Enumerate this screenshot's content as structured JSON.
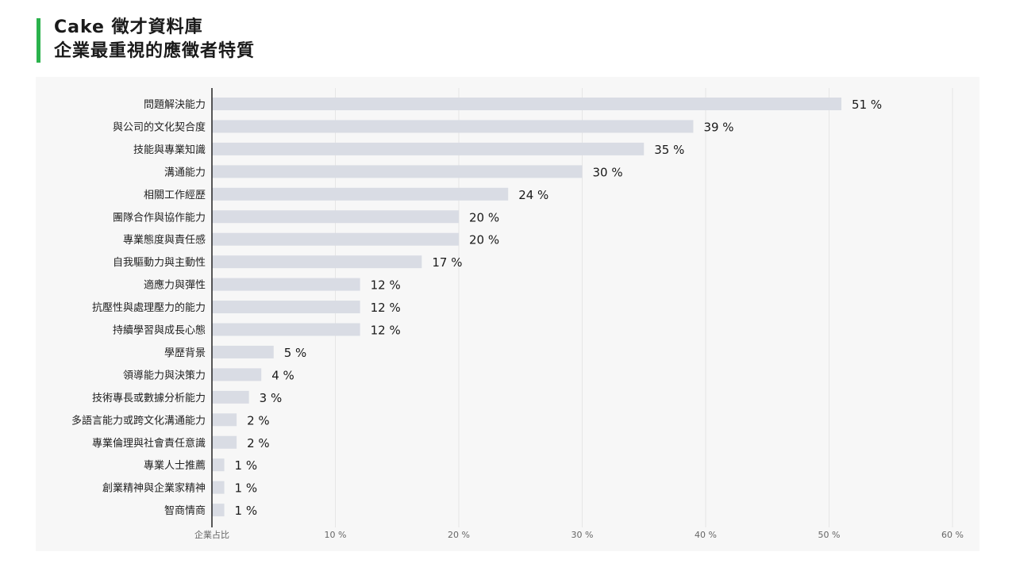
{
  "title_line1": "Cake 徵才資料庫",
  "title_line2": "企業最重視的應徵者特質",
  "colors": {
    "accent": "#2bb24c",
    "bar": "#d9dce4",
    "panel": "#f7f7f7",
    "grid": "#e6e6e6",
    "axis": "#222222"
  },
  "chart_data": {
    "type": "bar",
    "orientation": "horizontal",
    "categories": [
      "問題解決能力",
      "與公司的文化契合度",
      "技能與專業知識",
      "溝通能力",
      "相關工作經歷",
      "團隊合作與協作能力",
      "專業態度與責任感",
      "自我驅動力與主動性",
      "適應力與彈性",
      "抗壓性與處理壓力的能力",
      "持續學習與成長心態",
      "學歷背景",
      "領導能力與決策力",
      "技術專長或數據分析能力",
      "多語言能力或跨文化溝通能力",
      "專業倫理與社會責任意識",
      "專業人士推薦",
      "創業精神與企業家精神",
      "智商情商"
    ],
    "values": [
      51,
      39,
      35,
      30,
      24,
      20,
      20,
      17,
      12,
      12,
      12,
      5,
      4,
      3,
      2,
      2,
      1,
      1,
      1
    ],
    "data_labels": [
      "51 %",
      "39 %",
      "35 %",
      "30 %",
      "24 %",
      "20 %",
      "20 %",
      "17 %",
      "12 %",
      "12 %",
      "12 %",
      "5 %",
      "4 %",
      "3 %",
      "2 %",
      "2 %",
      "1 %",
      "1 %",
      "1 %"
    ],
    "xlabel": "企業占比",
    "xticks": [
      10,
      20,
      30,
      40,
      50,
      60
    ],
    "xtick_labels": [
      "10 %",
      "20 %",
      "30 %",
      "40 %",
      "50 %",
      "60 %"
    ],
    "xlim": [
      0,
      60
    ],
    "grid": true,
    "legend": "none"
  }
}
